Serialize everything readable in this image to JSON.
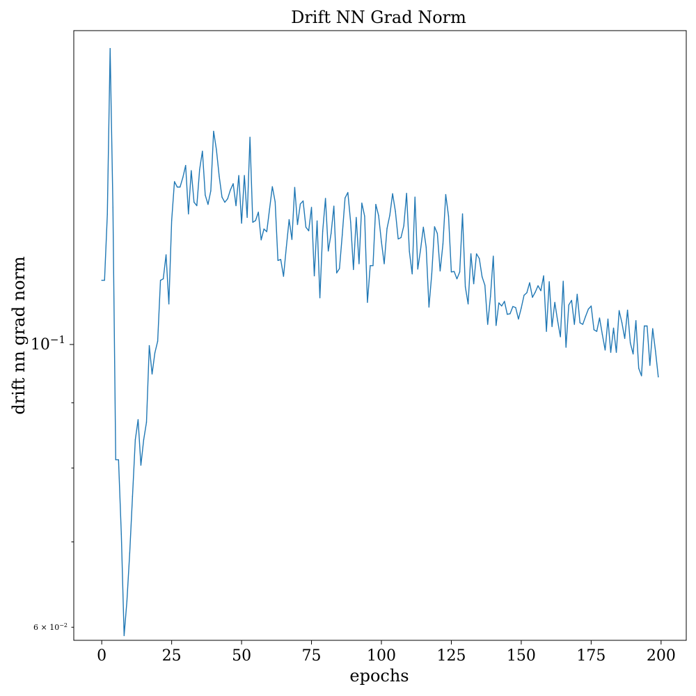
{
  "chart_data": {
    "type": "line",
    "title": "Drift NN Grad Norm",
    "xlabel": "epochs",
    "ylabel": "drift nn grad norm",
    "xscale": "linear",
    "yscale": "log",
    "grid": false,
    "xlim": [
      -10,
      209
    ],
    "ylim": [
      0.0586,
      0.1763
    ],
    "x_ticks": [
      {
        "value": 0,
        "label": "0"
      },
      {
        "value": 25,
        "label": "25"
      },
      {
        "value": 50,
        "label": "50"
      },
      {
        "value": 75,
        "label": "75"
      },
      {
        "value": 100,
        "label": "100"
      },
      {
        "value": 125,
        "label": "125"
      },
      {
        "value": 150,
        "label": "150"
      },
      {
        "value": 175,
        "label": "175"
      },
      {
        "value": 200,
        "label": "200"
      }
    ],
    "y_ticks": [
      {
        "value": 0.1,
        "label_base": "10",
        "label_exp": "−1",
        "major": true
      },
      {
        "value": 0.06,
        "label_base": "6 × 10",
        "label_exp": "−2",
        "major": false
      }
    ],
    "y_minor_ticks": [
      0.07,
      0.08,
      0.09
    ],
    "series": [
      {
        "color": "#1f77b4",
        "x": [
          0,
          1,
          2,
          3,
          4,
          5,
          6,
          7,
          8,
          9,
          10,
          11,
          12,
          13,
          14,
          15,
          16,
          17,
          18,
          19,
          20,
          21,
          22,
          23,
          24,
          25,
          26,
          27,
          28,
          29,
          30,
          31,
          32,
          33,
          34,
          35,
          36,
          37,
          38,
          39,
          40,
          41,
          42,
          43,
          44,
          45,
          46,
          47,
          48,
          49,
          50,
          51,
          52,
          53,
          54,
          55,
          56,
          57,
          58,
          59,
          60,
          61,
          62,
          63,
          64,
          65,
          66,
          67,
          68,
          69,
          70,
          71,
          72,
          73,
          74,
          75,
          76,
          77,
          78,
          79,
          80,
          81,
          82,
          83,
          84,
          85,
          86,
          87,
          88,
          89,
          90,
          91,
          92,
          93,
          94,
          95,
          96,
          97,
          98,
          99,
          100,
          101,
          102,
          103,
          104,
          105,
          106,
          107,
          108,
          109,
          110,
          111,
          112,
          113,
          114,
          115,
          116,
          117,
          118,
          119,
          120,
          121,
          122,
          123,
          124,
          125,
          126,
          127,
          128,
          129,
          130,
          131,
          132,
          133,
          134,
          135,
          136,
          137,
          138,
          139,
          140,
          141,
          142,
          143,
          144,
          145,
          146,
          147,
          148,
          149,
          150,
          151,
          152,
          153,
          154,
          155,
          156,
          157,
          158,
          159,
          160,
          161,
          162,
          163,
          164,
          165,
          166,
          167,
          168,
          169,
          170,
          171,
          172,
          173,
          174,
          175,
          176,
          177,
          178,
          179,
          180,
          181,
          182,
          183,
          184,
          185,
          186,
          187,
          188,
          189,
          190,
          191,
          192,
          193,
          194,
          195,
          196,
          197,
          198,
          199
        ],
        "y": [
          0.1123,
          0.1123,
          0.1265,
          0.1707,
          0.1281,
          0.0812,
          0.0812,
          0.071,
          0.0591,
          0.0629,
          0.0686,
          0.076,
          0.0842,
          0.0873,
          0.0804,
          0.0842,
          0.0869,
          0.0998,
          0.0948,
          0.0985,
          0.1006,
          0.1123,
          0.1126,
          0.1176,
          0.1076,
          0.1251,
          0.1342,
          0.1329,
          0.1329,
          0.1352,
          0.1382,
          0.1266,
          0.1369,
          0.1293,
          0.1285,
          0.1372,
          0.1418,
          0.131,
          0.1288,
          0.132,
          0.147,
          0.1422,
          0.1355,
          0.1305,
          0.1293,
          0.1301,
          0.1322,
          0.1337,
          0.1285,
          0.1357,
          0.1245,
          0.1357,
          0.1258,
          0.1454,
          0.1247,
          0.1251,
          0.127,
          0.1208,
          0.1232,
          0.1226,
          0.1277,
          0.133,
          0.1294,
          0.1164,
          0.1166,
          0.1131,
          0.1192,
          0.1253,
          0.1209,
          0.1328,
          0.1242,
          0.1289,
          0.1296,
          0.1236,
          0.1228,
          0.1281,
          0.1132,
          0.125,
          0.1088,
          0.1227,
          0.1302,
          0.1184,
          0.1222,
          0.1284,
          0.1138,
          0.1147,
          0.1219,
          0.1303,
          0.1316,
          0.1247,
          0.1145,
          0.1258,
          0.1157,
          0.1291,
          0.1261,
          0.1079,
          0.1153,
          0.1153,
          0.1288,
          0.1262,
          0.1204,
          0.1157,
          0.1233,
          0.1263,
          0.1313,
          0.1272,
          0.121,
          0.1213,
          0.1239,
          0.1314,
          0.1183,
          0.1136,
          0.1305,
          0.1146,
          0.1187,
          0.1236,
          0.1192,
          0.107,
          0.1136,
          0.1237,
          0.1222,
          0.1142,
          0.1199,
          0.1311,
          0.1261,
          0.114,
          0.1141,
          0.1126,
          0.114,
          0.1266,
          0.111,
          0.1076,
          0.1178,
          0.1116,
          0.1178,
          0.1168,
          0.113,
          0.1113,
          0.1037,
          0.1091,
          0.1173,
          0.1035,
          0.1078,
          0.1072,
          0.1081,
          0.1056,
          0.1057,
          0.1071,
          0.1069,
          0.1047,
          0.1068,
          0.1093,
          0.1098,
          0.1118,
          0.1089,
          0.1099,
          0.1112,
          0.1102,
          0.1132,
          0.1024,
          0.112,
          0.1033,
          0.1079,
          0.1044,
          0.1014,
          0.1121,
          0.0995,
          0.1074,
          0.1083,
          0.1037,
          0.1095,
          0.104,
          0.1037,
          0.1052,
          0.1066,
          0.1072,
          0.1027,
          0.1024,
          0.1049,
          0.1018,
          0.099,
          0.1047,
          0.0986,
          0.103,
          0.0986,
          0.1063,
          0.104,
          0.1011,
          0.1064,
          0.1003,
          0.0983,
          0.1044,
          0.0958,
          0.0945,
          0.1034,
          0.1034,
          0.0963,
          0.1029,
          0.0988,
          0.0943
        ]
      }
    ]
  }
}
